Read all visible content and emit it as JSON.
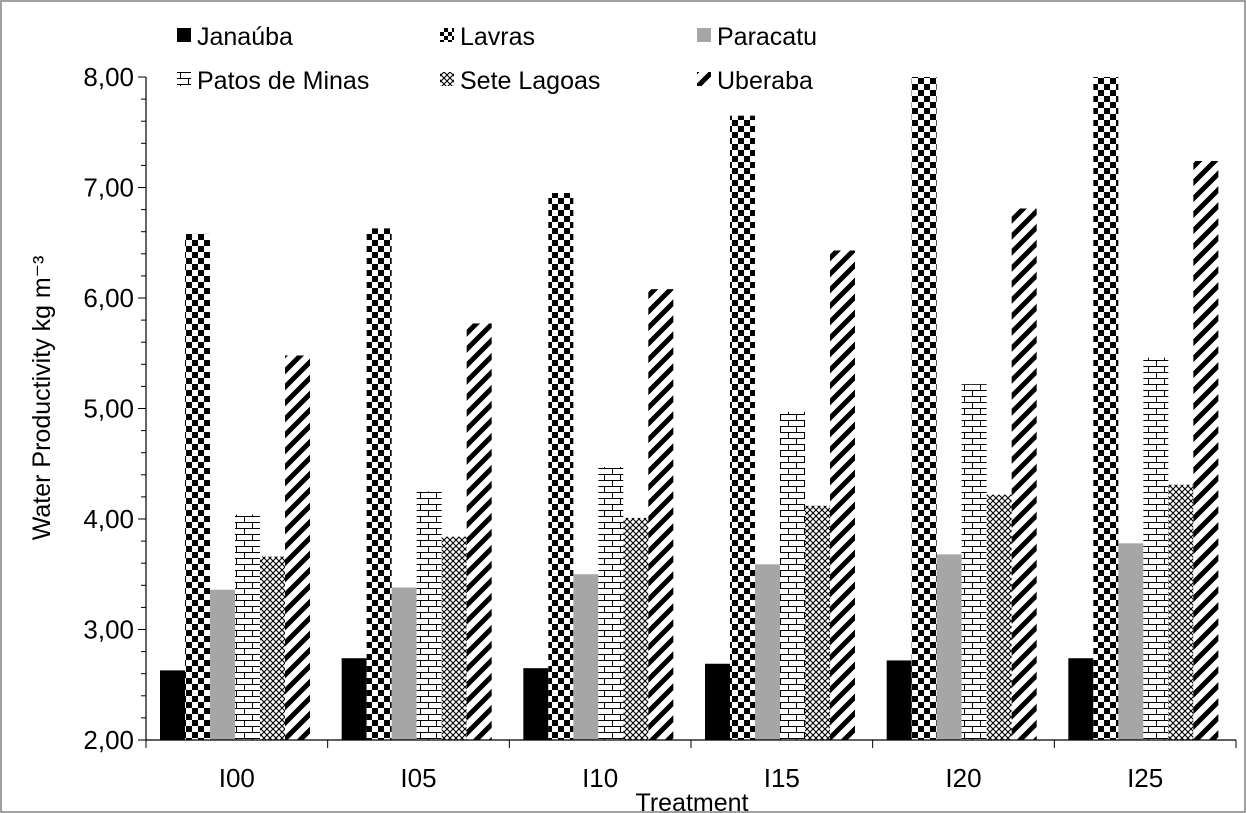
{
  "chart_data": {
    "type": "bar",
    "title": "",
    "xlabel": "Treatment",
    "ylabel": "Water Productivity kg m⁻³",
    "ylim": [
      2.0,
      8.0
    ],
    "y_ticks": [
      "2,00",
      "3,00",
      "4,00",
      "5,00",
      "6,00",
      "7,00",
      "8,00"
    ],
    "y_tick_values": [
      2,
      3,
      4,
      5,
      6,
      7,
      8
    ],
    "grid": false,
    "legend_position": "top",
    "categories": [
      "I00",
      "I05",
      "I10",
      "I15",
      "I20",
      "I25"
    ],
    "series": [
      {
        "name": "Janaúba",
        "values": [
          2.63,
          2.74,
          2.65,
          2.69,
          2.72,
          2.74
        ],
        "pattern": "solid-black"
      },
      {
        "name": "Lavras",
        "values": [
          6.58,
          6.63,
          6.95,
          7.65,
          8.0,
          8.0
        ],
        "pattern": "checkerboard"
      },
      {
        "name": "Paracatu",
        "values": [
          3.36,
          3.38,
          3.5,
          3.59,
          3.68,
          3.78
        ],
        "pattern": "solid-gray"
      },
      {
        "name": "Patos de Minas",
        "values": [
          4.04,
          4.25,
          4.47,
          4.97,
          5.22,
          5.46
        ],
        "pattern": "brick"
      },
      {
        "name": "Sete Lagoas",
        "values": [
          3.66,
          3.84,
          4.01,
          4.12,
          4.22,
          4.31
        ],
        "pattern": "crosshatch"
      },
      {
        "name": "Uberaba",
        "values": [
          5.48,
          5.77,
          6.08,
          6.43,
          6.81,
          7.24
        ],
        "pattern": "diagonal-stripes"
      }
    ],
    "colors": {
      "ink": "#000000",
      "gray": "#a6a6a6",
      "frame": "#808080"
    }
  }
}
